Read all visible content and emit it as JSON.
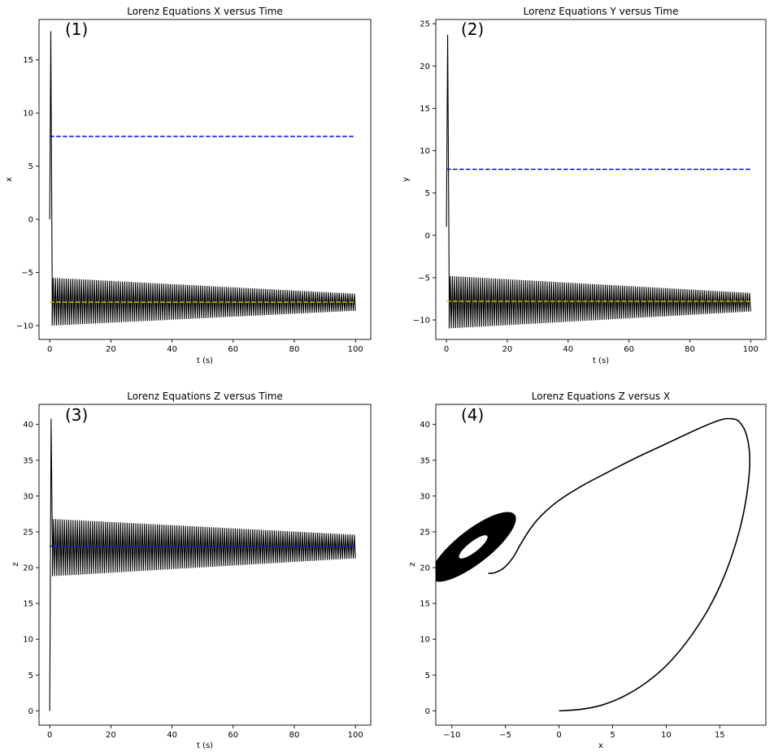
{
  "chart_data": [
    {
      "type": "line",
      "panel_label": "(1)",
      "title": "Lorenz Equations X versus Time",
      "xlabel": "t (s)",
      "ylabel": "x",
      "xlim": [
        -3.5,
        105
      ],
      "ylim": [
        -11.3,
        18.8
      ],
      "xticks": [
        0,
        20,
        40,
        60,
        80,
        100
      ],
      "yticks": [
        -10,
        -5,
        0,
        5,
        10,
        15
      ],
      "series": [
        {
          "kind": "oscillation",
          "color": "#000000",
          "start": [
            0,
            0
          ],
          "spike": [
            0.35,
            17.7
          ],
          "decay_end": [
            0.8,
            -6
          ],
          "t_start": 0.8,
          "t_end": 100,
          "upper_start": -5.5,
          "upper_end": -7.0,
          "lower_start": -10.0,
          "lower_end": -8.6,
          "cycles": 140
        },
        {
          "kind": "hline",
          "color": "#0000ff",
          "dash": true,
          "y": 7.8,
          "x": [
            0,
            100
          ]
        },
        {
          "kind": "hline",
          "color": "#bfbf00",
          "dash": true,
          "y": -7.8,
          "x": [
            0,
            100
          ]
        }
      ]
    },
    {
      "type": "line",
      "panel_label": "(2)",
      "title": "Lorenz Equations Y versus Time",
      "xlabel": "t (s)",
      "ylabel": "y",
      "xlim": [
        -3.5,
        105
      ],
      "ylim": [
        -12.3,
        25.5
      ],
      "xticks": [
        0,
        20,
        40,
        60,
        80,
        100
      ],
      "yticks": [
        -10,
        -5,
        0,
        5,
        10,
        15,
        20,
        25
      ],
      "series": [
        {
          "kind": "oscillation",
          "color": "#000000",
          "start": [
            0,
            1
          ],
          "spike": [
            0.4,
            23.7
          ],
          "decay_end": [
            0.9,
            -6
          ],
          "t_start": 0.9,
          "t_end": 100,
          "upper_start": -4.8,
          "upper_end": -6.8,
          "lower_start": -11.0,
          "lower_end": -9.0,
          "cycles": 140
        },
        {
          "kind": "hline",
          "color": "#0000ff",
          "dash": true,
          "y": 7.8,
          "x": [
            0,
            100
          ]
        },
        {
          "kind": "hline",
          "color": "#bfbf00",
          "dash": true,
          "y": -7.8,
          "x": [
            0,
            100
          ]
        }
      ]
    },
    {
      "type": "line",
      "panel_label": "(3)",
      "title": "Lorenz Equations Z versus Time",
      "xlabel": "t (s)",
      "ylabel": "z",
      "xlim": [
        -3.5,
        105
      ],
      "ylim": [
        -2.0,
        42.8
      ],
      "xticks": [
        0,
        20,
        40,
        60,
        80,
        100
      ],
      "yticks": [
        0,
        5,
        10,
        15,
        20,
        25,
        30,
        35,
        40
      ],
      "series": [
        {
          "kind": "oscillation",
          "color": "#000000",
          "start": [
            0,
            0
          ],
          "spike": [
            0.45,
            40.8
          ],
          "decay_end": [
            0.9,
            22
          ],
          "t_start": 0.9,
          "t_end": 100,
          "upper_start": 26.8,
          "upper_end": 24.6,
          "lower_start": 18.8,
          "lower_end": 21.3,
          "cycles": 140
        },
        {
          "kind": "hline",
          "color": "#bfbf00",
          "dash": true,
          "y": 23.0,
          "x": [
            0,
            100
          ]
        },
        {
          "kind": "hline",
          "color": "#0000ff",
          "dash": true,
          "y": 23.0,
          "x": [
            0,
            100
          ]
        }
      ]
    },
    {
      "type": "line",
      "panel_label": "(4)",
      "title": "Lorenz Equations Z versus X",
      "xlabel": "x",
      "ylabel": "z",
      "xlim": [
        -11.5,
        19.3
      ],
      "ylim": [
        -2.0,
        42.8
      ],
      "xticks": [
        -10,
        -5,
        0,
        5,
        10,
        15
      ],
      "yticks": [
        0,
        5,
        10,
        15,
        20,
        25,
        30,
        35,
        40
      ],
      "series": [
        {
          "kind": "trajectory",
          "color": "#000000",
          "points": [
            [
              0,
              0
            ],
            [
              2,
              0.2
            ],
            [
              4,
              0.8
            ],
            [
              6,
              2
            ],
            [
              8,
              3.8
            ],
            [
              10,
              6.3
            ],
            [
              12,
              9.8
            ],
            [
              14,
              14.4
            ],
            [
              15.6,
              19.5
            ],
            [
              16.8,
              25
            ],
            [
              17.5,
              30
            ],
            [
              17.8,
              35
            ],
            [
              17.5,
              38.5
            ],
            [
              16.8,
              40.4
            ],
            [
              16,
              40.8
            ],
            [
              15,
              40.6
            ],
            [
              13,
              39.4
            ],
            [
              10,
              37.3
            ],
            [
              7,
              35.2
            ],
            [
              4,
              32.9
            ],
            [
              2,
              31.3
            ],
            [
              0,
              29.4
            ],
            [
              -1.5,
              27.5
            ],
            [
              -2.5,
              25.8
            ],
            [
              -3.5,
              23.5
            ],
            [
              -4.3,
              21.4
            ],
            [
              -5.2,
              19.9
            ],
            [
              -6,
              19.3
            ],
            [
              -6.6,
              19.2
            ]
          ]
        },
        {
          "kind": "ring",
          "color": "#000000",
          "outer": {
            "cx": -8.0,
            "cy": 22.9,
            "rx": 4.9,
            "ry": 2.35,
            "angle_deg": -38
          },
          "inner": {
            "cx": -8.0,
            "cy": 22.9,
            "rx": 1.65,
            "ry": 0.72,
            "angle_deg": -38
          }
        }
      ]
    }
  ]
}
